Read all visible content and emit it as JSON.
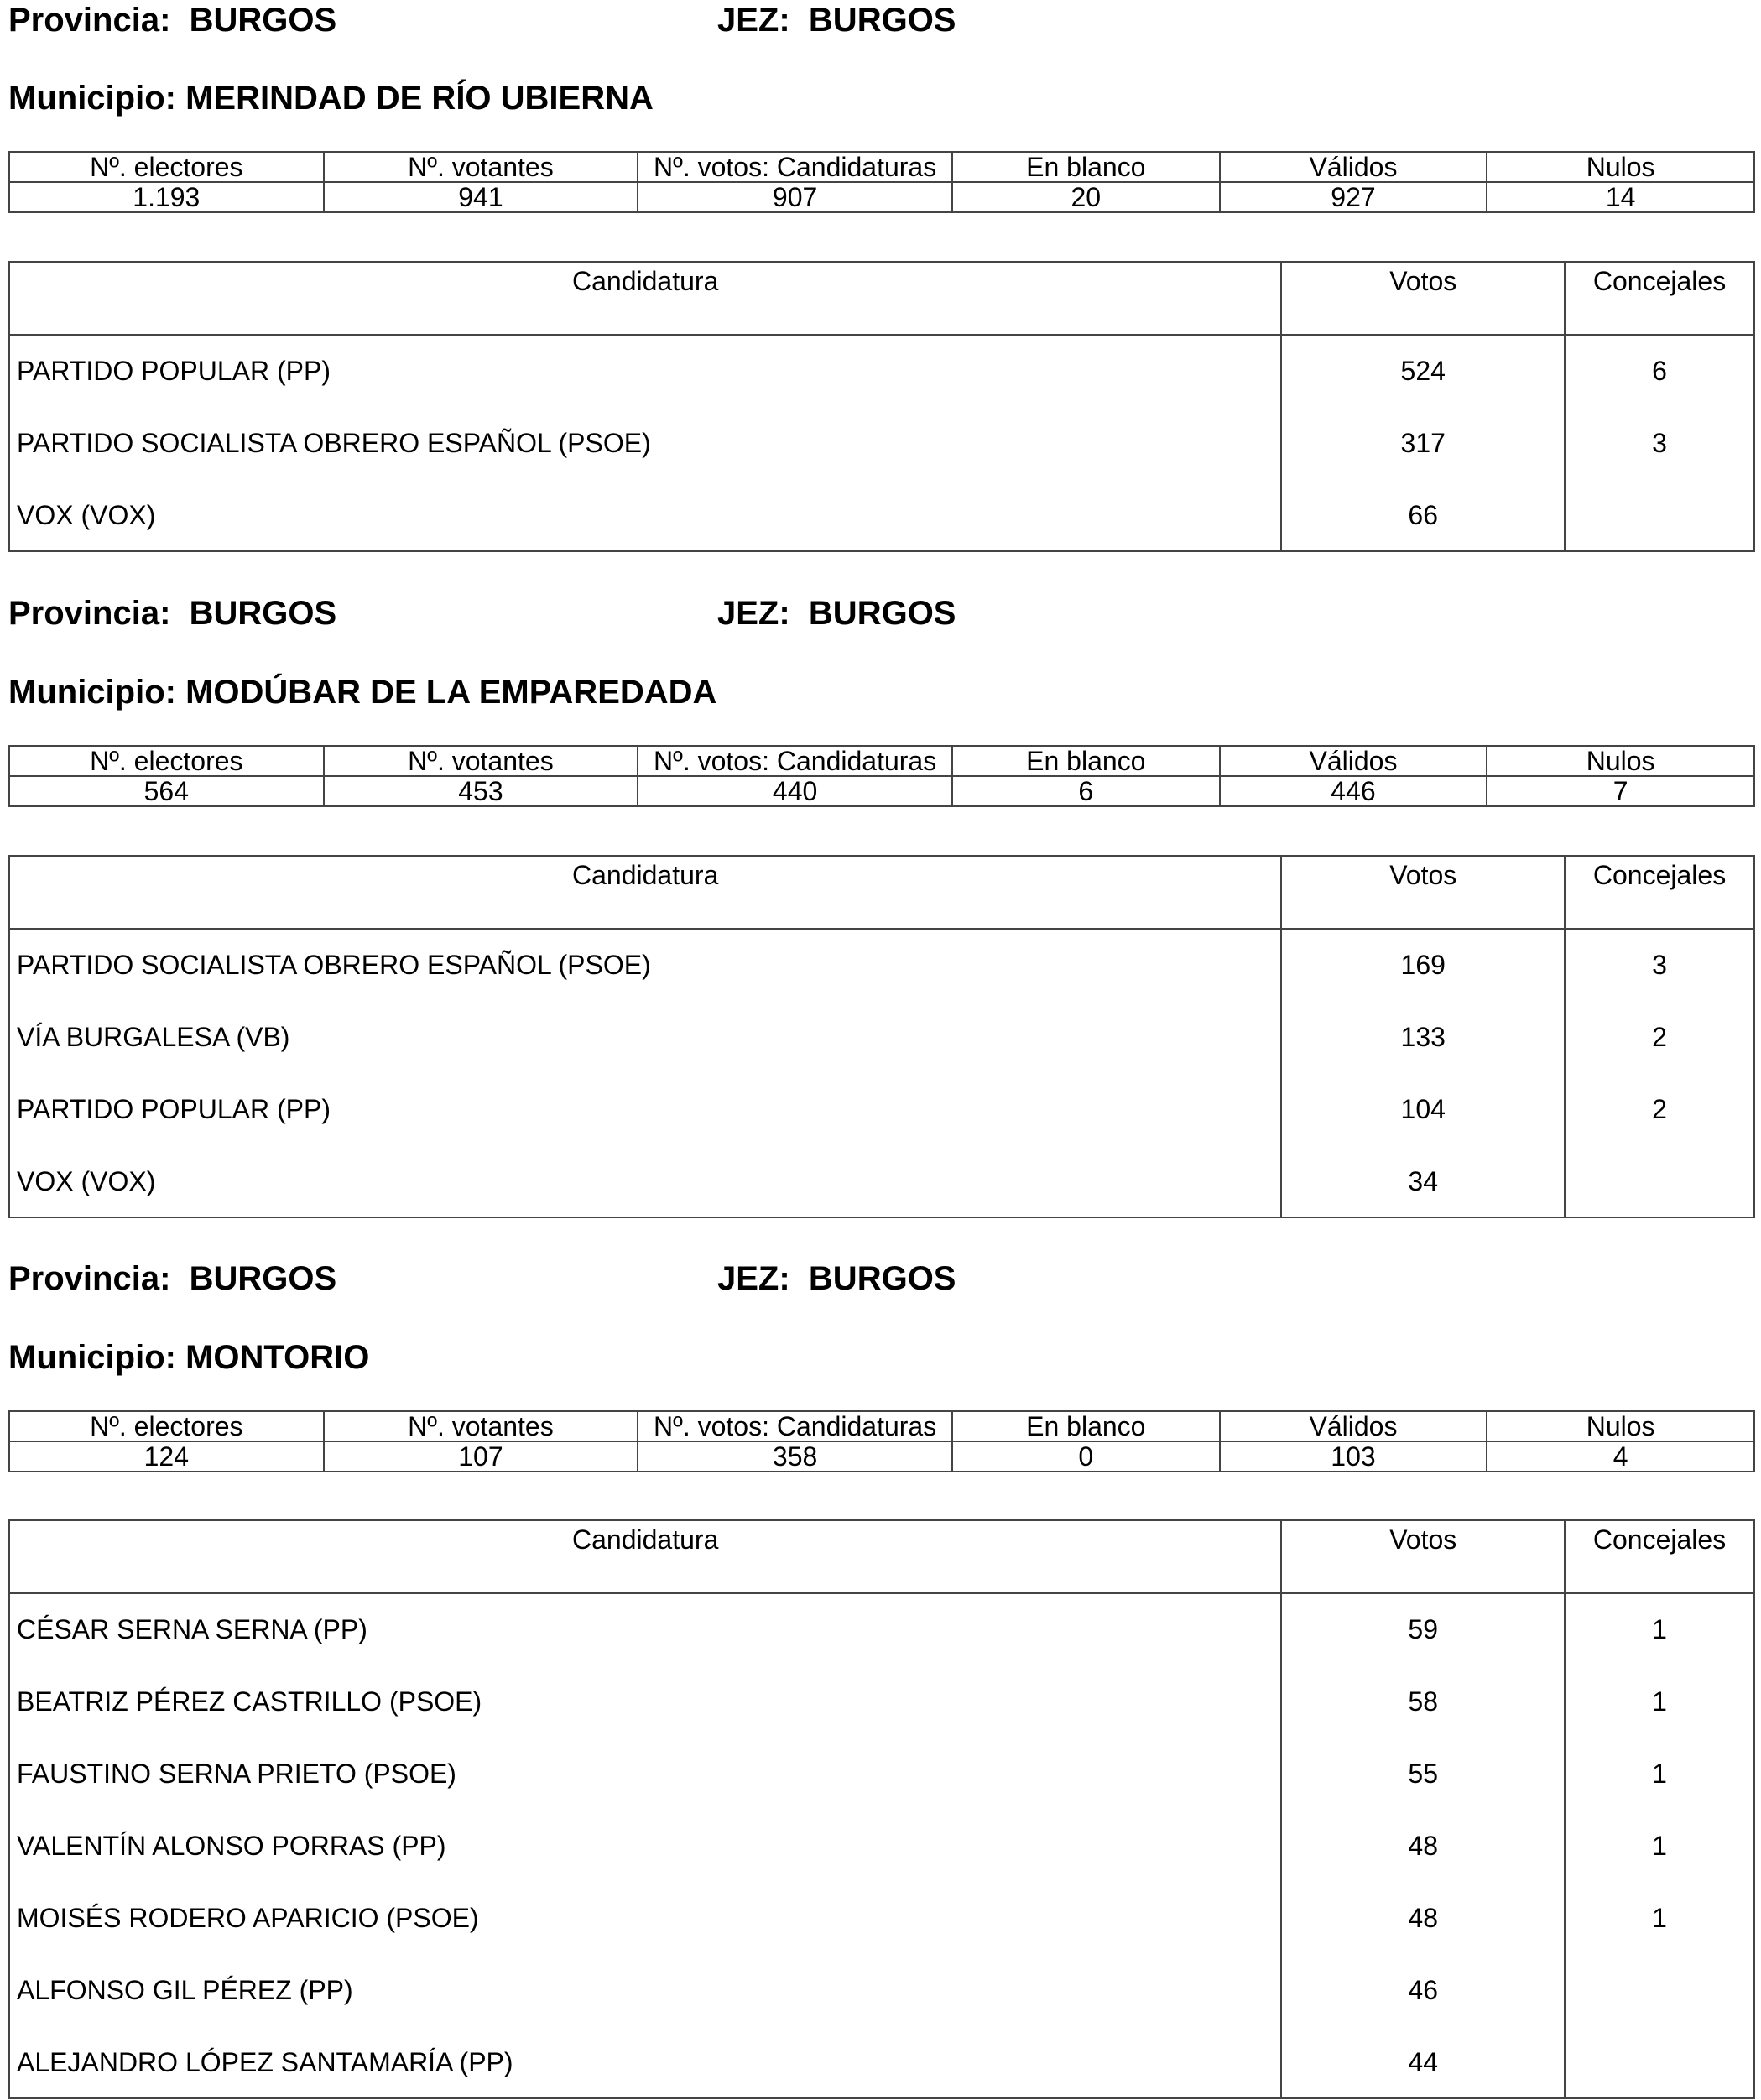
{
  "stat_headers": [
    "Nº. electores",
    "Nº. votantes",
    "Nº. votos: Candidaturas",
    "En blanco",
    "Válidos",
    "Nulos"
  ],
  "cand_headers": [
    "Candidatura",
    "Votos",
    "Concejales"
  ],
  "sections": [
    {
      "provincia_label": "Provincia:",
      "provincia": "BURGOS",
      "jez_label": "JEZ:",
      "jez": "BURGOS",
      "municipio_label": "Municipio:",
      "municipio": "MERINDAD DE RÍO UBIERNA",
      "stats": [
        "1.193",
        "941",
        "907",
        "20",
        "927",
        "14"
      ],
      "candidates": [
        {
          "name": "PARTIDO POPULAR (PP)",
          "votos": "524",
          "concejales": "6"
        },
        {
          "name": "PARTIDO SOCIALISTA OBRERO ESPAÑOL (PSOE)",
          "votos": "317",
          "concejales": "3"
        },
        {
          "name": "VOX (VOX)",
          "votos": "66",
          "concejales": ""
        }
      ]
    },
    {
      "provincia_label": "Provincia:",
      "provincia": "BURGOS",
      "jez_label": "JEZ:",
      "jez": "BURGOS",
      "municipio_label": "Municipio:",
      "municipio": "MODÚBAR DE LA EMPAREDADA",
      "stats": [
        "564",
        "453",
        "440",
        "6",
        "446",
        "7"
      ],
      "candidates": [
        {
          "name": "PARTIDO SOCIALISTA OBRERO ESPAÑOL (PSOE)",
          "votos": "169",
          "concejales": "3"
        },
        {
          "name": "VÍA BURGALESA (VB)",
          "votos": "133",
          "concejales": "2"
        },
        {
          "name": "PARTIDO POPULAR (PP)",
          "votos": "104",
          "concejales": "2"
        },
        {
          "name": "VOX (VOX)",
          "votos": "34",
          "concejales": ""
        }
      ]
    },
    {
      "provincia_label": "Provincia:",
      "provincia": "BURGOS",
      "jez_label": "JEZ:",
      "jez": "BURGOS",
      "municipio_label": "Municipio:",
      "municipio": "MONTORIO",
      "stats": [
        "124",
        "107",
        "358",
        "0",
        "103",
        "4"
      ],
      "candidates": [
        {
          "name": "CÉSAR SERNA SERNA (PP)",
          "votos": "59",
          "concejales": "1"
        },
        {
          "name": "BEATRIZ PÉREZ CASTRILLO (PSOE)",
          "votos": "58",
          "concejales": "1"
        },
        {
          "name": "FAUSTINO SERNA PRIETO (PSOE)",
          "votos": "55",
          "concejales": "1"
        },
        {
          "name": "VALENTÍN ALONSO PORRAS (PP)",
          "votos": "48",
          "concejales": "1"
        },
        {
          "name": "MOISÉS RODERO APARICIO (PSOE)",
          "votos": "48",
          "concejales": "1"
        },
        {
          "name": "ALFONSO GIL PÉREZ (PP)",
          "votos": "46",
          "concejales": ""
        },
        {
          "name": "ALEJANDRO LÓPEZ SANTAMARÍA (PP)",
          "votos": "44",
          "concejales": ""
        }
      ]
    }
  ]
}
